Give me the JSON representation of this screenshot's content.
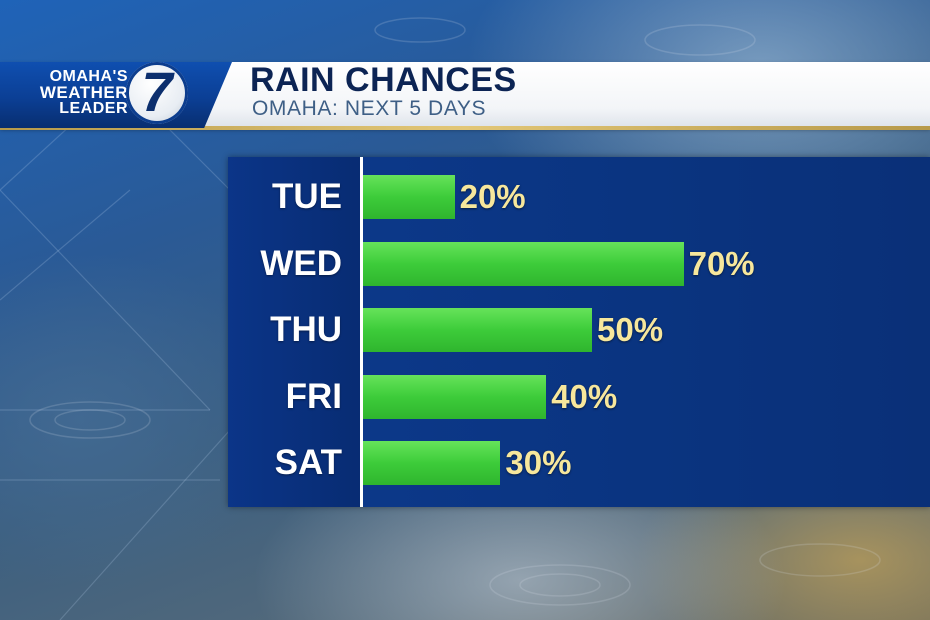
{
  "station": {
    "logo_line1": "OMAHA'S",
    "logo_line2": "WEATHER",
    "logo_line3": "LEADER",
    "channel_number": "7"
  },
  "header": {
    "title": "RAIN CHANCES",
    "subtitle": "OMAHA: NEXT 5 DAYS"
  },
  "colors": {
    "bar": "#3dcc3a",
    "value_label": "#f7e79c",
    "panel": "#0b3588"
  },
  "chart_data": {
    "type": "bar",
    "orientation": "horizontal",
    "title": "RAIN CHANCES",
    "subtitle": "OMAHA: NEXT 5 DAYS",
    "categories": [
      "TUE",
      "WED",
      "THU",
      "FRI",
      "SAT"
    ],
    "values": [
      20,
      70,
      50,
      40,
      30
    ],
    "value_labels": [
      "20%",
      "70%",
      "50%",
      "40%",
      "30%"
    ],
    "xlim": [
      0,
      100
    ],
    "grid": false,
    "legend": "none"
  }
}
